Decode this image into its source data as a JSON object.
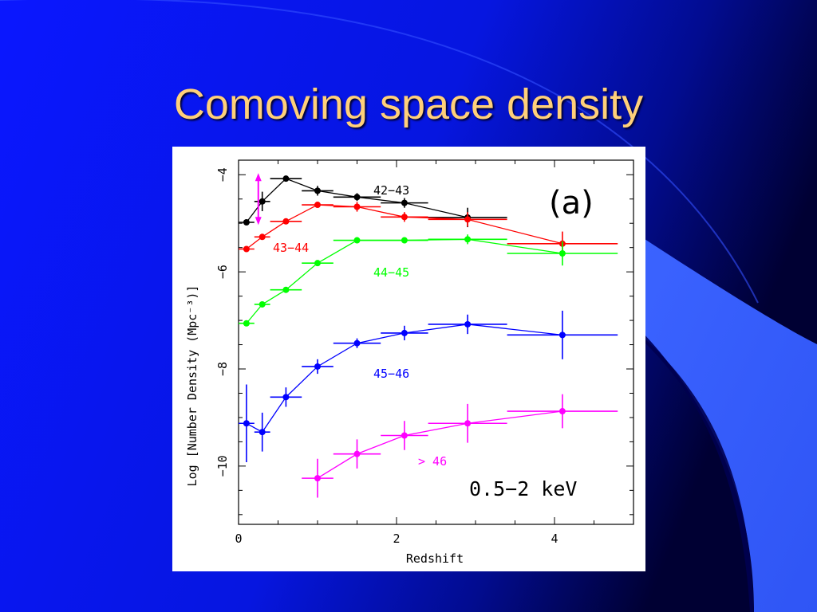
{
  "slide": {
    "title": "Comoving space density",
    "colors": {
      "background": "#0a17ff",
      "title": "#ffd07a",
      "accent_dark": "#000050",
      "accent_light": "#3b63ff"
    }
  },
  "chart_data": {
    "type": "scatter",
    "title": "",
    "panel_label": "(a)",
    "band_label": "0.5−2 keV",
    "xlabel": "Redshift",
    "ylabel": "Log [Number Density (Mpc⁻³)]",
    "xlim": [
      0,
      5
    ],
    "ylim": [
      -11.2,
      -3.7
    ],
    "xticks": [
      0,
      2,
      4
    ],
    "yticks": [
      -4,
      -6,
      -8,
      -10
    ],
    "xtick_labels": [
      "0",
      "2",
      "4"
    ],
    "ytick_labels": [
      "−4",
      "−6",
      "−8",
      "−10"
    ],
    "grid": false,
    "annotation": {
      "type": "double-arrow",
      "color": "#ff00ff",
      "x": 0.25,
      "y_from": -4.0,
      "y_to": -5.0
    },
    "series": [
      {
        "name": "42−43",
        "color": "#000000",
        "points": [
          {
            "x": 0.1,
            "y": -4.98,
            "xerr": [
              0.1,
              0.1
            ],
            "yerr": [
              0.0,
              0.0
            ]
          },
          {
            "x": 0.3,
            "y": -4.55,
            "xerr": [
              0.1,
              0.1
            ],
            "yerr": [
              0.2,
              0.2
            ]
          },
          {
            "x": 0.6,
            "y": -4.08,
            "xerr": [
              0.2,
              0.2
            ],
            "yerr": [
              0.05,
              0.05
            ]
          },
          {
            "x": 1.0,
            "y": -4.33,
            "xerr": [
              0.2,
              0.2
            ],
            "yerr": [
              0.1,
              0.1
            ]
          },
          {
            "x": 1.5,
            "y": -4.46,
            "xerr": [
              0.3,
              0.3
            ],
            "yerr": [
              0.08,
              0.08
            ]
          },
          {
            "x": 2.1,
            "y": -4.58,
            "xerr": [
              0.3,
              0.3
            ],
            "yerr": [
              0.1,
              0.1
            ]
          },
          {
            "x": 2.9,
            "y": -4.88,
            "xerr": [
              0.5,
              0.5
            ],
            "yerr": [
              0.2,
              0.2
            ]
          }
        ]
      },
      {
        "name": "43−44",
        "color": "#ff0000",
        "points": [
          {
            "x": 0.1,
            "y": -5.53,
            "xerr": [
              0.1,
              0.1
            ],
            "yerr": [
              0.0,
              0.0
            ]
          },
          {
            "x": 0.3,
            "y": -5.28,
            "xerr": [
              0.1,
              0.1
            ],
            "yerr": [
              0.0,
              0.0
            ]
          },
          {
            "x": 0.6,
            "y": -4.96,
            "xerr": [
              0.2,
              0.2
            ],
            "yerr": [
              0.05,
              0.05
            ]
          },
          {
            "x": 1.0,
            "y": -4.62,
            "xerr": [
              0.2,
              0.2
            ],
            "yerr": [
              0.05,
              0.05
            ]
          },
          {
            "x": 1.5,
            "y": -4.66,
            "xerr": [
              0.3,
              0.3
            ],
            "yerr": [
              0.1,
              0.1
            ]
          },
          {
            "x": 2.1,
            "y": -4.87,
            "xerr": [
              0.3,
              0.3
            ],
            "yerr": [
              0.1,
              0.1
            ]
          },
          {
            "x": 2.9,
            "y": -4.92,
            "xerr": [
              0.5,
              0.5
            ],
            "yerr": [
              0.15,
              0.15
            ]
          },
          {
            "x": 4.1,
            "y": -5.42,
            "xerr": [
              0.7,
              0.7
            ],
            "yerr": [
              0.25,
              0.25
            ]
          }
        ]
      },
      {
        "name": "44−45",
        "color": "#00ff00",
        "points": [
          {
            "x": 0.1,
            "y": -7.06,
            "xerr": [
              0.1,
              0.1
            ],
            "yerr": [
              0.0,
              0.0
            ]
          },
          {
            "x": 0.3,
            "y": -6.67,
            "xerr": [
              0.1,
              0.1
            ],
            "yerr": [
              0.0,
              0.0
            ]
          },
          {
            "x": 0.6,
            "y": -6.37,
            "xerr": [
              0.2,
              0.2
            ],
            "yerr": [
              0.05,
              0.05
            ]
          },
          {
            "x": 1.0,
            "y": -5.82,
            "xerr": [
              0.2,
              0.2
            ],
            "yerr": [
              0.05,
              0.05
            ]
          },
          {
            "x": 1.5,
            "y": -5.35,
            "xerr": [
              0.3,
              0.3
            ],
            "yerr": [
              0.05,
              0.05
            ]
          },
          {
            "x": 2.1,
            "y": -5.35,
            "xerr": [
              0.3,
              0.3
            ],
            "yerr": [
              0.05,
              0.05
            ]
          },
          {
            "x": 2.9,
            "y": -5.33,
            "xerr": [
              0.5,
              0.5
            ],
            "yerr": [
              0.1,
              0.1
            ]
          },
          {
            "x": 4.1,
            "y": -5.62,
            "xerr": [
              0.7,
              0.7
            ],
            "yerr": [
              0.25,
              0.25
            ]
          }
        ]
      },
      {
        "name": "45−46",
        "color": "#0000ff",
        "points": [
          {
            "x": 0.1,
            "y": -9.12,
            "xerr": [
              0.1,
              0.1
            ],
            "yerr": [
              0.8,
              0.8
            ]
          },
          {
            "x": 0.3,
            "y": -9.3,
            "xerr": [
              0.1,
              0.1
            ],
            "yerr": [
              0.4,
              0.4
            ]
          },
          {
            "x": 0.6,
            "y": -8.58,
            "xerr": [
              0.2,
              0.2
            ],
            "yerr": [
              0.2,
              0.2
            ]
          },
          {
            "x": 1.0,
            "y": -7.95,
            "xerr": [
              0.2,
              0.2
            ],
            "yerr": [
              0.15,
              0.15
            ]
          },
          {
            "x": 1.5,
            "y": -7.47,
            "xerr": [
              0.3,
              0.3
            ],
            "yerr": [
              0.1,
              0.1
            ]
          },
          {
            "x": 2.1,
            "y": -7.26,
            "xerr": [
              0.3,
              0.3
            ],
            "yerr": [
              0.15,
              0.15
            ]
          },
          {
            "x": 2.9,
            "y": -7.08,
            "xerr": [
              0.5,
              0.5
            ],
            "yerr": [
              0.2,
              0.2
            ]
          },
          {
            "x": 4.1,
            "y": -7.3,
            "xerr": [
              0.7,
              0.7
            ],
            "yerr": [
              0.5,
              0.5
            ]
          }
        ]
      },
      {
        "name": "> 46",
        "color": "#ff00ff",
        "points": [
          {
            "x": 1.0,
            "y": -10.25,
            "xerr": [
              0.2,
              0.2
            ],
            "yerr": [
              0.4,
              0.4
            ]
          },
          {
            "x": 1.5,
            "y": -9.75,
            "xerr": [
              0.3,
              0.3
            ],
            "yerr": [
              0.3,
              0.3
            ]
          },
          {
            "x": 2.1,
            "y": -9.37,
            "xerr": [
              0.3,
              0.3
            ],
            "yerr": [
              0.3,
              0.3
            ]
          },
          {
            "x": 2.9,
            "y": -9.12,
            "xerr": [
              0.5,
              0.5
            ],
            "yerr": [
              0.4,
              0.4
            ]
          },
          {
            "x": 4.1,
            "y": -8.87,
            "xerr": [
              0.7,
              0.7
            ],
            "yerr": [
              0.35,
              0.35
            ]
          }
        ]
      }
    ]
  }
}
